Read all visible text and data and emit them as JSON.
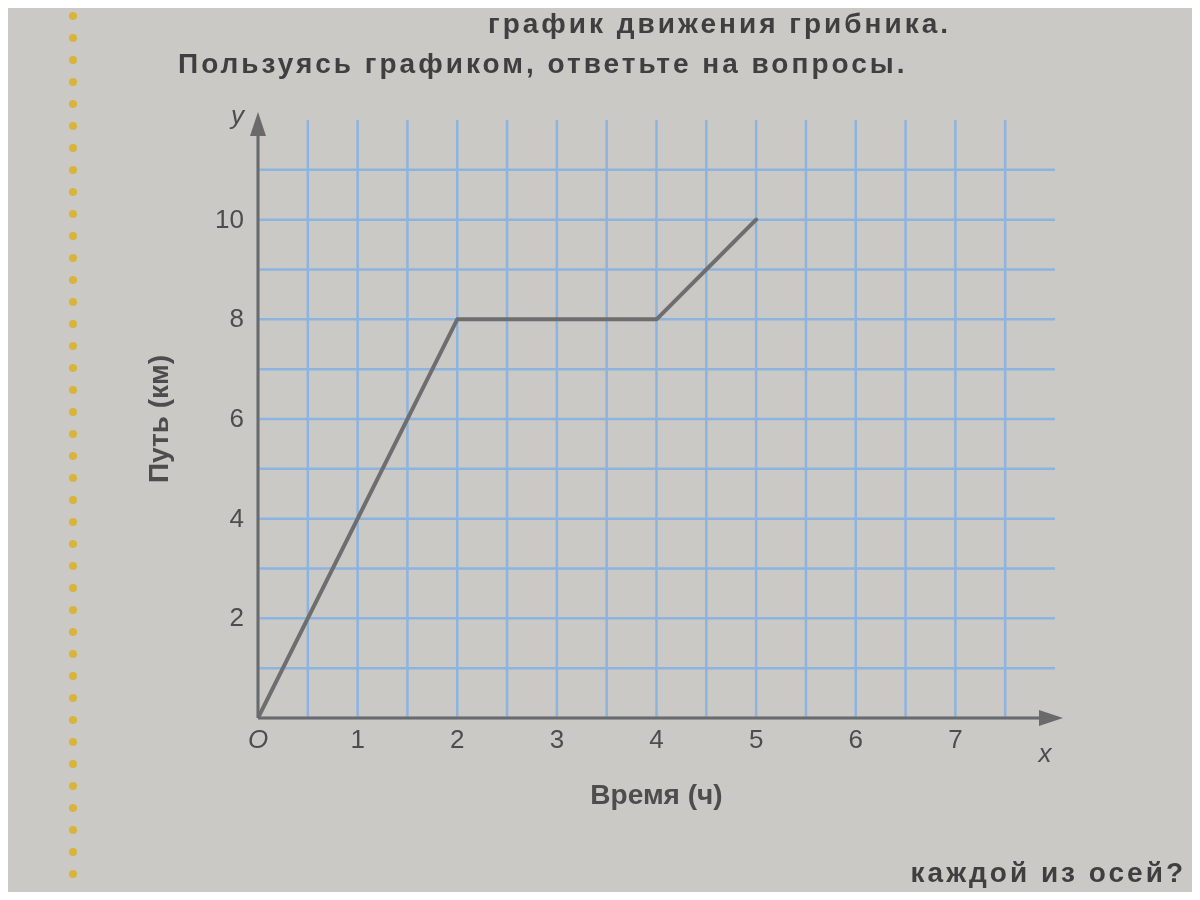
{
  "chart_data": {
    "type": "line",
    "title": "график движения грибника.",
    "subtitle": "Пользуясь графиком, ответьте на вопросы.",
    "xlabel": "Время (ч)",
    "ylabel": "Путь (км)",
    "annotations": [
      "y",
      "x",
      "каждой из осей?"
    ],
    "x": [
      0,
      2,
      4,
      5
    ],
    "values": [
      0,
      8,
      8,
      10
    ],
    "color": "#6e6e6e",
    "xlim": [
      0,
      8
    ],
    "ylim": [
      0,
      12
    ],
    "xticks": [
      {
        "value": 0,
        "label": "O"
      },
      {
        "value": 0.5,
        "label": null
      },
      1,
      {
        "value": 1.5,
        "label": null
      },
      2,
      {
        "value": 2.5,
        "label": null
      },
      3,
      {
        "value": 3.5,
        "label": null
      },
      4,
      {
        "value": 4.5,
        "label": null
      },
      5,
      {
        "value": 5.5,
        "label": null
      },
      6,
      {
        "value": 6.5,
        "label": null
      },
      7,
      {
        "value": 7.5,
        "label": null
      }
    ],
    "yticks": [
      {
        "value": 0,
        "label": null
      },
      {
        "value": 1,
        "label": null
      },
      2,
      {
        "value": 3,
        "label": null
      },
      4,
      {
        "value": 5,
        "label": null
      },
      6,
      {
        "value": 7,
        "label": null
      },
      8,
      {
        "value": 9,
        "label": null
      },
      10,
      {
        "value": 11,
        "label": null
      }
    ],
    "grid": true,
    "marker": "none",
    "line_style": "solid"
  }
}
